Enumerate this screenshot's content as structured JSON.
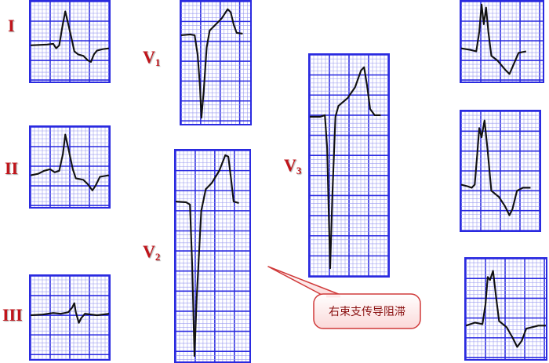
{
  "colors": {
    "grid_minor": "#9a9af0",
    "grid_major": "#2a2ae0",
    "trace": "#111111",
    "label": "#c0151b",
    "callout_fill": "#fde8e8",
    "callout_border": "#d03a3a"
  },
  "leads": [
    {
      "id": "I",
      "label": "I",
      "sub": ""
    },
    {
      "id": "II",
      "label": "II",
      "sub": ""
    },
    {
      "id": "III",
      "label": "III",
      "sub": ""
    },
    {
      "id": "V1",
      "label": "V",
      "sub": "1"
    },
    {
      "id": "V2",
      "label": "V",
      "sub": "2"
    },
    {
      "id": "V3",
      "label": "V",
      "sub": "3"
    }
  ],
  "callout": {
    "text": "右束支传导阻滞"
  }
}
